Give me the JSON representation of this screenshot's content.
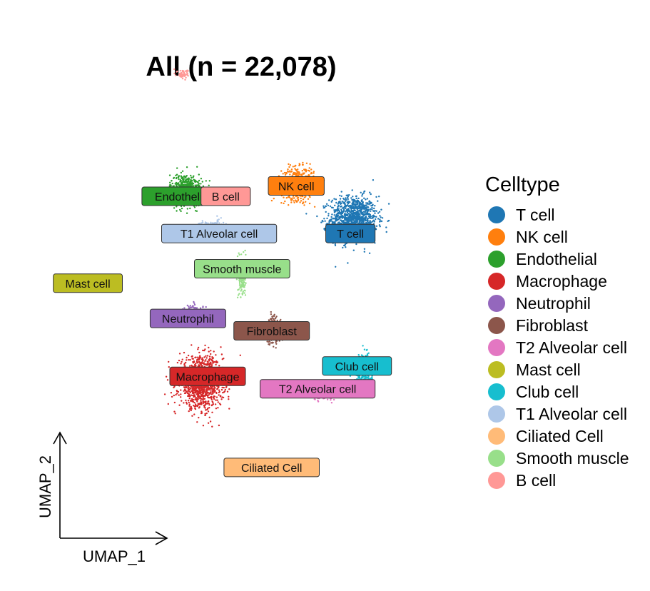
{
  "chart_data": {
    "type": "scatter",
    "title": "All (n = 22,078)",
    "xlabel": "UMAP_1",
    "ylabel": "UMAP_2",
    "legend": {
      "title": "Celltype",
      "placement": "right"
    },
    "xlim": [
      -10,
      10
    ],
    "ylim": [
      -10,
      10
    ],
    "clusters": [
      {
        "name": "T cell",
        "color": "#1f77b4",
        "centroid": [
          5.9,
          3.9
        ],
        "spread": [
          1.3,
          1.0
        ],
        "label_pos": [
          5.7,
          3.2
        ]
      },
      {
        "name": "NK cell",
        "color": "#ff7f0e",
        "centroid": [
          2.5,
          5.6
        ],
        "spread": [
          0.9,
          0.7
        ],
        "label_pos": [
          2.4,
          5.5
        ]
      },
      {
        "name": "Endothelial",
        "color": "#2ca02c",
        "centroid": [
          -4.3,
          5.3
        ],
        "spread": [
          0.9,
          0.7
        ],
        "label_pos": [
          -4.5,
          5.0
        ]
      },
      {
        "name": "Macrophage",
        "color": "#d62728",
        "centroid": [
          -3.4,
          -4.0
        ],
        "spread": [
          1.2,
          1.1
        ],
        "label_pos": [
          -3.0,
          -3.7
        ]
      },
      {
        "name": "Neutrophil",
        "color": "#9467bd",
        "centroid": [
          -3.8,
          -0.7
        ],
        "spread": [
          0.6,
          0.4
        ],
        "label_pos": [
          -4.2,
          -0.9
        ]
      },
      {
        "name": "Fibroblast",
        "color": "#8c564b",
        "centroid": [
          1.0,
          -1.5
        ],
        "spread": [
          0.4,
          0.6
        ],
        "label_pos": [
          0.9,
          -1.5
        ]
      },
      {
        "name": "T2 Alveolar cell",
        "color": "#e377c2",
        "centroid": [
          4.3,
          -4.5
        ],
        "spread": [
          0.8,
          0.3
        ],
        "label_pos": [
          3.7,
          -4.3
        ]
      },
      {
        "name": "Mast cell",
        "color": "#bcbd22",
        "centroid": [
          -10.2,
          0.9
        ],
        "spread": [
          0.2,
          0.3
        ],
        "label_pos": [
          -10.3,
          0.8
        ]
      },
      {
        "name": "Club cell",
        "color": "#17becf",
        "centroid": [
          6.5,
          -3.4
        ],
        "spread": [
          0.5,
          0.7
        ],
        "label_pos": [
          6.1,
          -3.2
        ]
      },
      {
        "name": "T1 Alveolar cell",
        "color": "#aec7e8",
        "centroid": [
          -2.7,
          3.5
        ],
        "spread": [
          0.7,
          0.3
        ],
        "label_pos": [
          -2.3,
          3.2
        ]
      },
      {
        "name": "Ciliated Cell",
        "color": "#ffbb78",
        "centroid": [
          0.9,
          -8.1
        ],
        "spread": [
          0.0,
          0.0
        ],
        "label_pos": [
          0.9,
          -8.1
        ]
      },
      {
        "name": "Smooth muscle",
        "color": "#98df8a",
        "centroid": [
          -0.9,
          1.1
        ],
        "spread": [
          0.2,
          0.9
        ],
        "label_pos": [
          -0.9,
          1.5
        ]
      },
      {
        "name": "B cell",
        "color": "#ff9896",
        "centroid": [
          -4.5,
          10.9
        ],
        "spread": [
          0.3,
          0.2
        ],
        "label_pos": [
          -1.9,
          5.0
        ]
      }
    ]
  }
}
